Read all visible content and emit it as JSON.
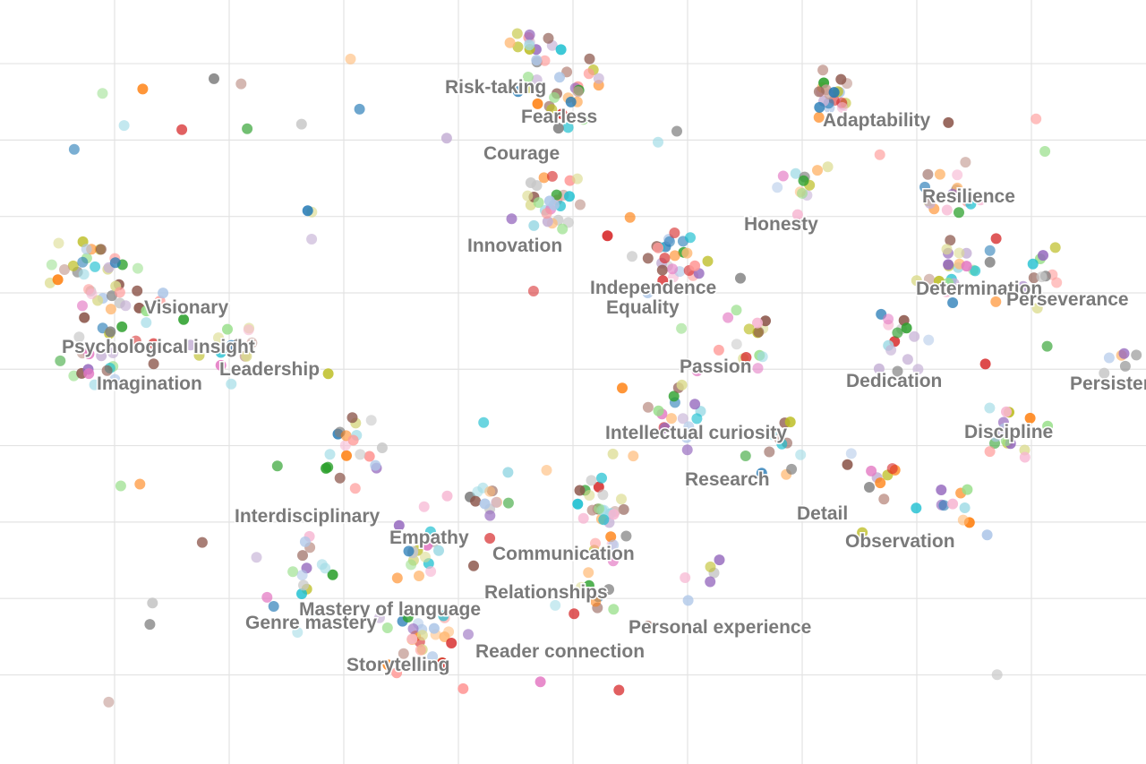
{
  "chart_data": {
    "type": "scatter",
    "title": "",
    "xlabel": "",
    "ylabel": "",
    "grid": true,
    "xlim": [
      -50,
      50
    ],
    "ylim": [
      -30,
      30
    ],
    "x_gridlines": [
      -40,
      -30,
      -20,
      -10,
      0,
      10,
      20,
      30,
      40
    ],
    "y_gridlines": [
      -23,
      -17,
      -11,
      -5,
      1,
      7,
      13,
      19,
      25
    ],
    "palette": [
      "#1f77b4",
      "#ff7f0e",
      "#2ca02c",
      "#d62728",
      "#9467bd",
      "#8c564b",
      "#e377c2",
      "#7f7f7f",
      "#bcbd22",
      "#17becf",
      "#aec7e8",
      "#ffbb78",
      "#98df8a",
      "#ff9896",
      "#c5b0d5",
      "#c49c94",
      "#f7b6d2",
      "#c7c7c7",
      "#dbdb8d",
      "#9edae5"
    ],
    "clusters": [
      {
        "label": "Risk-taking",
        "x": -3.5,
        "y": 26.0,
        "spread": 2.2,
        "n": 18
      },
      {
        "label": "Fearless",
        "x": 0.8,
        "y": 24.0,
        "spread": 1.8,
        "n": 10
      },
      {
        "label": "Courage",
        "x": -1.2,
        "y": 22.0,
        "spread": 2.0,
        "n": 12
      },
      {
        "label": "Adaptability",
        "x": 22.5,
        "y": 22.0,
        "spread": 2.0,
        "n": 22
      },
      {
        "label": "Resilience",
        "x": 33.0,
        "y": 15.0,
        "spread": 2.4,
        "n": 16
      },
      {
        "label": "Honesty",
        "x": 19.5,
        "y": 15.0,
        "spread": 2.2,
        "n": 12
      },
      {
        "label": "Innovation",
        "x": -2.0,
        "y": 14.0,
        "spread": 2.8,
        "n": 26
      },
      {
        "label": "Independence",
        "x": 8.0,
        "y": 10.0,
        "spread": 2.6,
        "n": 18
      },
      {
        "label": "Equality",
        "x": 10.0,
        "y": 9.0,
        "spread": 2.6,
        "n": 12
      },
      {
        "label": "Determination",
        "x": 34.0,
        "y": 9.0,
        "spread": 2.6,
        "n": 22
      },
      {
        "label": "Perseverance",
        "x": 41.0,
        "y": 8.0,
        "spread": 2.2,
        "n": 12
      },
      {
        "label": "Visionary",
        "x": -42.0,
        "y": 9.0,
        "spread": 3.0,
        "n": 26
      },
      {
        "label": "Psychological insight",
        "x": -39.0,
        "y": 6.0,
        "spread": 3.0,
        "n": 18
      },
      {
        "label": "Leadership",
        "x": -30.0,
        "y": 3.0,
        "spread": 3.0,
        "n": 16
      },
      {
        "label": "Imagination",
        "x": -42.0,
        "y": 2.0,
        "spread": 3.0,
        "n": 18
      },
      {
        "label": "Passion",
        "x": 15.0,
        "y": 3.0,
        "spread": 2.8,
        "n": 14
      },
      {
        "label": "Dedication",
        "x": 28.0,
        "y": 3.0,
        "spread": 2.6,
        "n": 16
      },
      {
        "label": "Persistence",
        "x": 47.0,
        "y": 1.5,
        "spread": 1.6,
        "n": 6
      },
      {
        "label": "Intellectual curiosity",
        "x": 9.0,
        "y": -2.0,
        "spread": 3.0,
        "n": 20
      },
      {
        "label": "Discipline",
        "x": 38.0,
        "y": -3.0,
        "spread": 2.6,
        "n": 16
      },
      {
        "label": "Research",
        "x": 18.0,
        "y": -5.0,
        "spread": 2.6,
        "n": 12
      },
      {
        "label": "Detail",
        "x": 26.0,
        "y": -7.0,
        "spread": 2.4,
        "n": 10
      },
      {
        "label": "Observation",
        "x": 33.0,
        "y": -10.0,
        "spread": 2.4,
        "n": 10
      },
      {
        "label": "Interdisciplinary",
        "x": -20.0,
        "y": -5.0,
        "spread": 3.0,
        "n": 20
      },
      {
        "label": "Empathy",
        "x": -8.0,
        "y": -9.0,
        "spread": 2.6,
        "n": 14
      },
      {
        "label": "Communication",
        "x": 3.0,
        "y": -10.0,
        "spread": 2.6,
        "n": 18
      },
      {
        "label": "Relationships",
        "x": 3.0,
        "y": -12.0,
        "spread": 2.4,
        "n": 12
      },
      {
        "label": "Mastery of language",
        "x": -13.0,
        "y": -13.0,
        "spread": 3.0,
        "n": 18
      },
      {
        "label": "Genre mastery",
        "x": -24.0,
        "y": -15.0,
        "spread": 3.2,
        "n": 16
      },
      {
        "label": "Personal experience",
        "x": 11.0,
        "y": -15.0,
        "spread": 2.0,
        "n": 6
      },
      {
        "label": "Reader connection",
        "x": 2.0,
        "y": -16.0,
        "spread": 2.6,
        "n": 10
      },
      {
        "label": "Storytelling",
        "x": -13.0,
        "y": -20.0,
        "spread": 3.0,
        "n": 28
      }
    ],
    "noise_points": 60
  }
}
